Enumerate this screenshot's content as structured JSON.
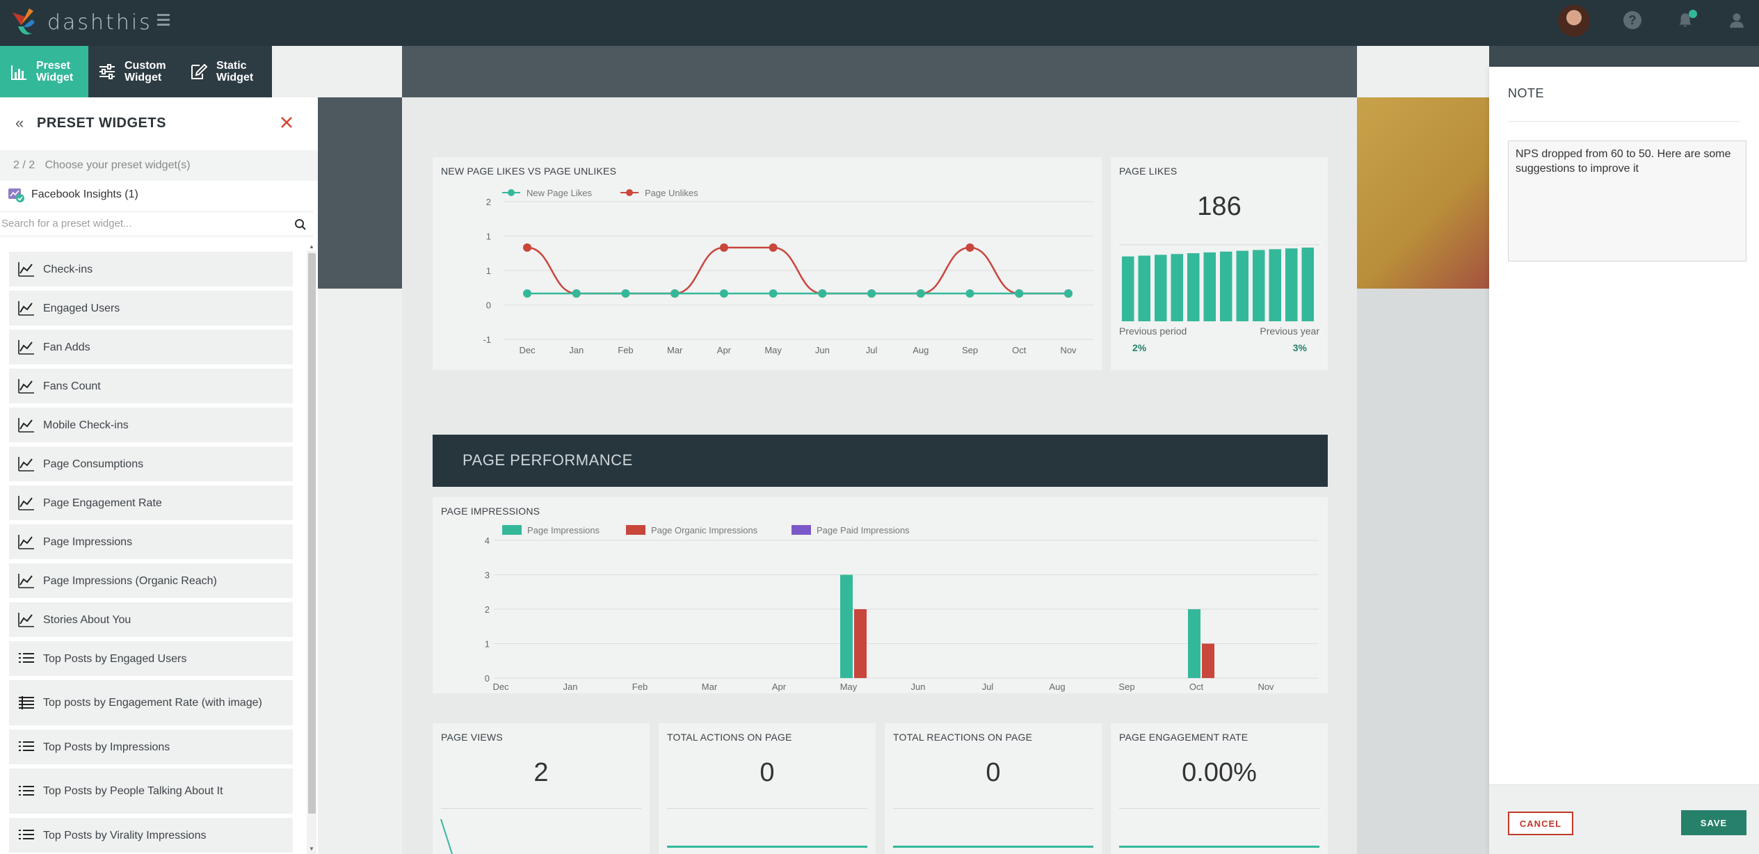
{
  "brand": {
    "name": "dashthis",
    "accent": "#34b89a"
  },
  "widget_tabs": [
    {
      "line1": "Preset",
      "line2": "Widget",
      "icon": "bar-chart-icon",
      "active": true
    },
    {
      "line1": "Custom",
      "line2": "Widget",
      "icon": "sliders-icon",
      "active": false
    },
    {
      "line1": "Static",
      "line2": "Widget",
      "icon": "edit-icon",
      "active": false
    }
  ],
  "panel": {
    "title": "PRESET WIDGETS",
    "step": "2 / 2",
    "step_label": "Choose your preset widget(s)",
    "source": "Facebook Insights (1)",
    "search_placeholder": "Search for a preset widget...",
    "items": [
      {
        "label": "Check-ins",
        "icon": "line-chart-icon"
      },
      {
        "label": "Engaged Users",
        "icon": "line-chart-icon"
      },
      {
        "label": "Fan Adds",
        "icon": "line-chart-icon"
      },
      {
        "label": "Fans Count",
        "icon": "line-chart-icon"
      },
      {
        "label": "Mobile Check-ins",
        "icon": "line-chart-icon"
      },
      {
        "label": "Page Consumptions",
        "icon": "line-chart-icon"
      },
      {
        "label": "Page Engagement Rate",
        "icon": "line-chart-icon"
      },
      {
        "label": "Page Impressions",
        "icon": "line-chart-icon"
      },
      {
        "label": "Page Impressions (Organic Reach)",
        "icon": "line-chart-icon"
      },
      {
        "label": "Stories About You",
        "icon": "line-chart-icon"
      },
      {
        "label": "Top Posts by Engaged Users",
        "icon": "list-icon"
      },
      {
        "label": "Top posts by Engagement Rate (with image)",
        "icon": "table-icon"
      },
      {
        "label": "Top Posts by Impressions",
        "icon": "list-icon"
      },
      {
        "label": "Top Posts by People Talking About It",
        "icon": "list-icon"
      },
      {
        "label": "Top Posts by Virality Impressions",
        "icon": "list-icon"
      }
    ]
  },
  "dashboard": {
    "likes_chart_title": "NEW PAGE LIKES VS PAGE UNLIKES",
    "page_likes": {
      "title": "PAGE LIKES",
      "value": "186",
      "prev_period_label": "Previous period",
      "prev_period_value": "2%",
      "prev_year_label": "Previous year",
      "prev_year_value": "3%"
    },
    "section_title": "PAGE PERFORMANCE",
    "impressions_chart_title": "PAGE IMPRESSIONS",
    "kpis": [
      {
        "title": "PAGE VIEWS",
        "value": "2"
      },
      {
        "title": "TOTAL ACTIONS ON PAGE",
        "value": "0"
      },
      {
        "title": "TOTAL REACTIONS ON PAGE",
        "value": "0"
      },
      {
        "title": "PAGE ENGAGEMENT RATE",
        "value": "0.00%"
      }
    ]
  },
  "chart_data": [
    {
      "type": "line",
      "title": "NEW PAGE LIKES VS PAGE UNLIKES",
      "categories": [
        "Dec",
        "Jan",
        "Feb",
        "Mar",
        "Apr",
        "May",
        "Jun",
        "Jul",
        "Aug",
        "Sep",
        "Oct",
        "Nov"
      ],
      "yticks": [
        "2",
        "1",
        "1",
        "0",
        "-1"
      ],
      "ylim": [
        -1,
        2
      ],
      "series": [
        {
          "name": "New Page Likes",
          "color": "#34b89a",
          "values": [
            0,
            0,
            0,
            0,
            0,
            0,
            0,
            0,
            0,
            0,
            0,
            0
          ]
        },
        {
          "name": "Page Unlikes",
          "color": "#c9463d",
          "values": [
            1,
            0,
            0,
            0,
            1,
            1,
            0,
            0,
            0,
            1,
            0,
            0
          ]
        }
      ]
    },
    {
      "type": "bar",
      "title": "PAGE LIKES",
      "values": [
        186,
        186,
        186,
        186,
        186,
        186,
        186,
        186,
        186,
        186,
        186,
        186
      ],
      "color": "#34b89a"
    },
    {
      "type": "bar",
      "title": "PAGE IMPRESSIONS",
      "categories": [
        "Dec",
        "Jan",
        "Feb",
        "Mar",
        "Apr",
        "May",
        "Jun",
        "Jul",
        "Aug",
        "Sep",
        "Oct",
        "Nov"
      ],
      "yticks": [
        "4",
        "3",
        "2",
        "1",
        "0"
      ],
      "ylim": [
        0,
        4
      ],
      "series": [
        {
          "name": "Page Impressions",
          "color": "#34b89a",
          "values": [
            0,
            0,
            0,
            0,
            0,
            3,
            0,
            0,
            0,
            0,
            2,
            0
          ]
        },
        {
          "name": "Page Organic Impressions",
          "color": "#c9463d",
          "values": [
            0,
            0,
            0,
            0,
            0,
            2,
            0,
            0,
            0,
            0,
            1,
            0
          ]
        },
        {
          "name": "Page Paid Impressions",
          "color": "#7b58c9",
          "values": [
            0,
            0,
            0,
            0,
            0,
            0,
            0,
            0,
            0,
            0,
            0,
            0
          ]
        }
      ]
    }
  ],
  "note": {
    "title": "NOTE",
    "text": "NPS dropped from 60 to 50. Here are some suggestions to improve it",
    "cancel_label": "CANCEL",
    "save_label": "SAVE"
  }
}
